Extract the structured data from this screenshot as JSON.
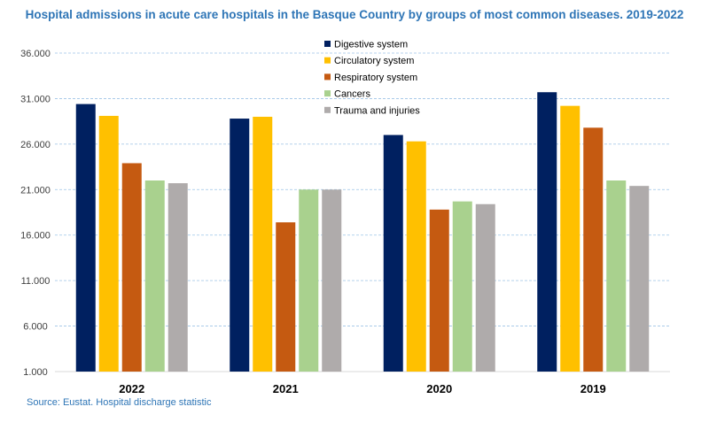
{
  "chart_data": {
    "type": "bar",
    "title": "Hospital admissions in acute care hospitals in the Basque Country by groups of most common diseases. 2019-2022",
    "source": "Source: Eustat. Hospital discharge statistic",
    "categories": [
      "2022",
      "2021",
      "2020",
      "2019"
    ],
    "ylim": [
      1000,
      36000
    ],
    "yticks": [
      1000,
      6000,
      11000,
      16000,
      21000,
      26000,
      31000,
      36000
    ],
    "ytick_labels": [
      "1.000",
      "6.000",
      "11.000",
      "16.000",
      "21.000",
      "26.000",
      "31.000",
      "36.000"
    ],
    "xlabel": "",
    "ylabel": "",
    "legend_position": "top-center",
    "series": [
      {
        "name": "Digestive system",
        "color": "#002060",
        "values": [
          30400,
          28800,
          27000,
          31700
        ]
      },
      {
        "name": "Circulatory system",
        "color": "#ffc000",
        "values": [
          29100,
          29000,
          26300,
          30200
        ]
      },
      {
        "name": "Respiratory system",
        "color": "#c55a11",
        "values": [
          23900,
          17400,
          18800,
          27800
        ]
      },
      {
        "name": "Cancers",
        "color": "#a9d18e",
        "values": [
          22000,
          21000,
          19700,
          22000
        ]
      },
      {
        "name": "Trauma and injuries",
        "color": "#afabab",
        "values": [
          21700,
          21000,
          19400,
          21400
        ]
      }
    ]
  }
}
